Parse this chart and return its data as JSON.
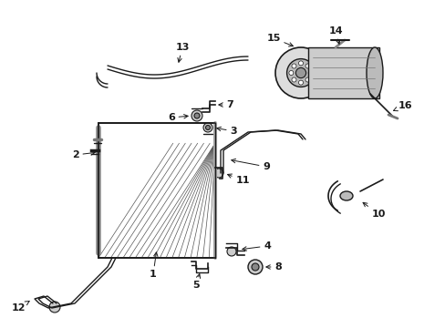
{
  "bg_color": "#ffffff",
  "line_color": "#1a1a1a",
  "label_color": "#111111",
  "figsize": [
    4.89,
    3.6
  ],
  "dpi": 100
}
